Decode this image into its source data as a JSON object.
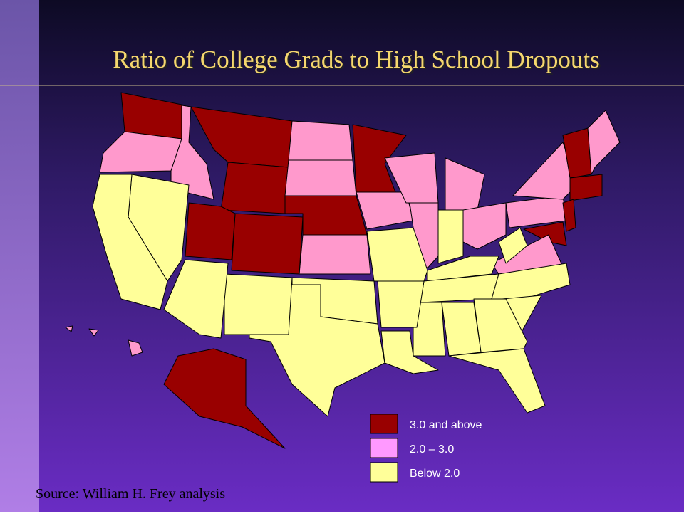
{
  "title": "Ratio of College Grads to High School Dropouts",
  "legend": [
    {
      "label": "3.0 and above",
      "color": "#990000"
    },
    {
      "label": "2.0 – 3.0",
      "color": "#ff99ff"
    },
    {
      "label": "Below 2.0",
      "color": "#ffff99"
    }
  ],
  "source": "Source: William H. Frey analysis"
}
